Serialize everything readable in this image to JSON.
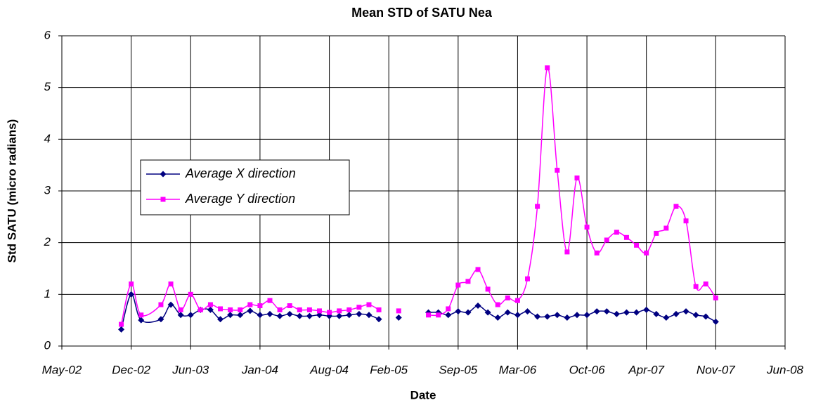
{
  "chart_data": {
    "type": "line",
    "title": "Mean STD of SATU Nea",
    "x_label": "Date",
    "y_label": "Std SATU (micro radians)",
    "x": [
      "2002-11",
      "2002-12",
      "2003-01",
      "2003-03",
      "2003-04",
      "2003-05",
      "2003-06",
      "2003-07",
      "2003-08",
      "2003-09",
      "2003-10",
      "2003-11",
      "2003-12",
      "2004-01",
      "2004-02",
      "2004-03",
      "2004-04",
      "2004-05",
      "2004-06",
      "2004-07",
      "2004-08",
      "2004-09",
      "2004-10",
      "2004-11",
      "2004-12",
      "2005-01",
      "2005-02",
      "2005-03",
      "2005-04",
      "2005-06",
      "2005-07",
      "2005-08",
      "2005-09",
      "2005-10",
      "2005-11",
      "2005-12",
      "2006-01",
      "2006-02",
      "2006-03",
      "2006-04",
      "2006-05",
      "2006-06",
      "2006-07",
      "2006-08",
      "2006-09",
      "2006-10",
      "2006-11",
      "2006-12",
      "2007-01",
      "2007-02",
      "2007-03",
      "2007-04",
      "2007-05",
      "2007-06",
      "2007-07",
      "2007-08",
      "2007-09",
      "2007-10",
      "2007-11"
    ],
    "series": [
      {
        "name": "Average X direction",
        "color": "#000080",
        "marker": "diamond",
        "values": [
          0.32,
          1.0,
          0.5,
          0.52,
          0.8,
          0.6,
          0.6,
          0.7,
          0.7,
          0.52,
          0.6,
          0.6,
          0.68,
          0.6,
          0.62,
          0.58,
          0.62,
          0.58,
          0.58,
          0.6,
          0.58,
          0.58,
          0.6,
          0.62,
          0.6,
          0.52,
          null,
          0.55,
          null,
          0.65,
          0.65,
          0.6,
          0.67,
          0.65,
          0.78,
          0.65,
          0.55,
          0.65,
          0.6,
          0.67,
          0.57,
          0.57,
          0.6,
          0.55,
          0.6,
          0.6,
          0.67,
          0.67,
          0.62,
          0.65,
          0.65,
          0.7,
          0.62,
          0.55,
          0.62,
          0.67,
          0.6,
          0.57,
          0.47
        ]
      },
      {
        "name": "Average Y direction",
        "color": "#ff00ff",
        "marker": "square",
        "values": [
          0.42,
          1.2,
          0.6,
          0.8,
          1.2,
          0.7,
          1.0,
          0.7,
          0.8,
          0.72,
          0.7,
          0.7,
          0.8,
          0.78,
          0.88,
          0.7,
          0.78,
          0.7,
          0.7,
          0.68,
          0.65,
          0.68,
          0.7,
          0.75,
          0.8,
          0.7,
          null,
          0.68,
          null,
          0.6,
          0.6,
          0.72,
          1.18,
          1.25,
          1.48,
          1.1,
          0.8,
          0.93,
          0.88,
          1.3,
          2.7,
          5.38,
          3.4,
          1.82,
          3.25,
          2.3,
          1.8,
          2.05,
          2.2,
          2.1,
          1.95,
          1.8,
          2.18,
          2.28,
          2.7,
          2.42,
          1.15,
          1.2,
          0.93
        ]
      }
    ],
    "xlim": [
      "2002-05",
      "2008-06"
    ],
    "xticks": [
      {
        "value": "2002-05",
        "label": "May-02"
      },
      {
        "value": "2002-12",
        "label": "Dec-02"
      },
      {
        "value": "2003-06",
        "label": "Jun-03"
      },
      {
        "value": "2004-01",
        "label": "Jan-04"
      },
      {
        "value": "2004-08",
        "label": "Aug-04"
      },
      {
        "value": "2005-02",
        "label": "Feb-05"
      },
      {
        "value": "2005-09",
        "label": "Sep-05"
      },
      {
        "value": "2006-03",
        "label": "Mar-06"
      },
      {
        "value": "2006-10",
        "label": "Oct-06"
      },
      {
        "value": "2007-04",
        "label": "Apr-07"
      },
      {
        "value": "2007-11",
        "label": "Nov-07"
      },
      {
        "value": "2008-06",
        "label": "Jun-08"
      }
    ],
    "ylim": [
      0,
      6
    ],
    "yticks": [
      0,
      1,
      2,
      3,
      4,
      5,
      6
    ],
    "grid": true,
    "legend": "left",
    "smooth": true
  }
}
